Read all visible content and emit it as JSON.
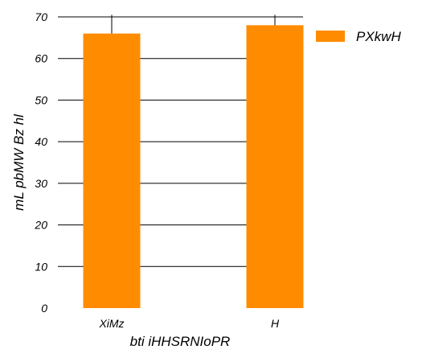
{
  "chart_data": {
    "type": "bar",
    "categories": [
      "XiMz",
      "H"
    ],
    "series": [
      {
        "name": "PXkwH",
        "values": [
          66,
          68
        ],
        "error_upper": [
          70.5,
          70.5
        ],
        "color": "#ff8c00"
      }
    ],
    "title": "",
    "xlabel": "bti iHHSRNIoPR",
    "ylabel": "mL pbMW Bz  hl",
    "ylim": [
      0,
      70
    ],
    "yticks": [
      0,
      10,
      20,
      30,
      40,
      50,
      60,
      70
    ],
    "grid": true,
    "grid_color": "#000000",
    "legend_position": "top-right"
  }
}
